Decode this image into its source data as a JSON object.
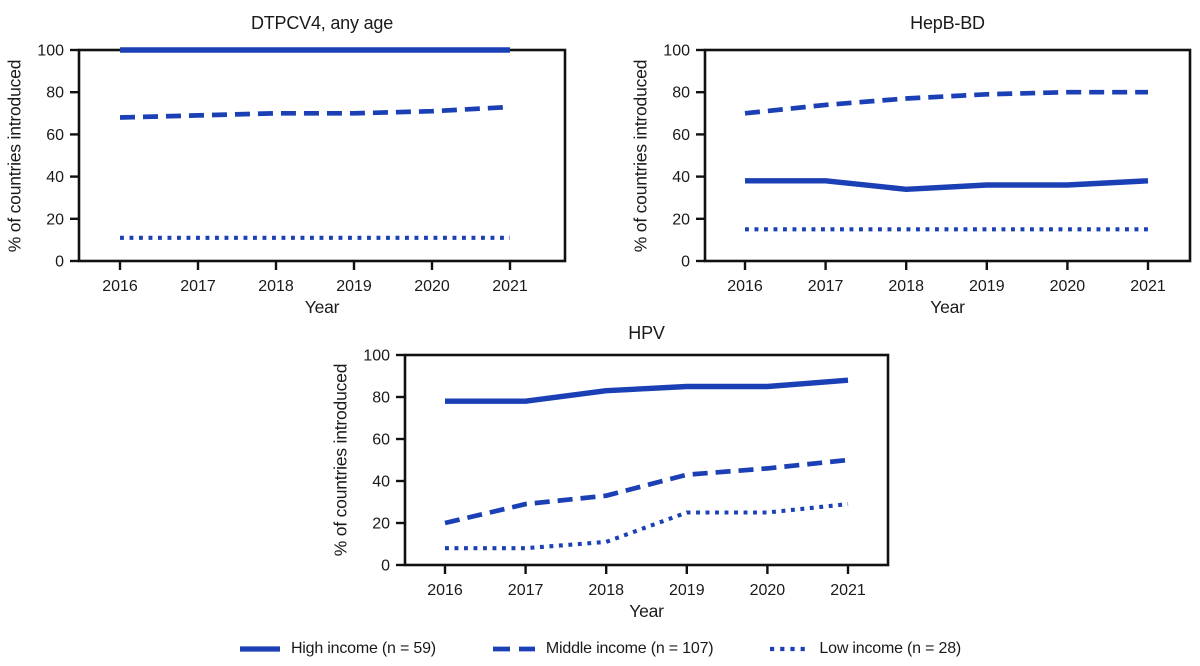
{
  "figure": {
    "line_color": "#1b40b5",
    "axis_color": "#111111",
    "text_color": "#1a1a1a"
  },
  "legend": {
    "items": [
      {
        "label": "High income (n = 59)",
        "style": "solid"
      },
      {
        "label": "Middle income (n = 107)",
        "style": "dashed"
      },
      {
        "label": "Low income (n = 28)",
        "style": "dotted"
      }
    ]
  },
  "chart_data": [
    {
      "type": "line",
      "title": "DTPCV4, any age",
      "xlabel": "Year",
      "ylabel": "% of countries introduced",
      "x": [
        2016,
        2017,
        2018,
        2019,
        2020,
        2021
      ],
      "ylim": [
        0,
        100
      ],
      "yticks": [
        0,
        20,
        40,
        60,
        80,
        100
      ],
      "grid": false,
      "series": [
        {
          "name": "High income (n = 59)",
          "style": "solid",
          "values": [
            100,
            100,
            100,
            100,
            100,
            100
          ]
        },
        {
          "name": "Middle income (n = 107)",
          "style": "dashed",
          "values": [
            68,
            69,
            70,
            70,
            71,
            73
          ]
        },
        {
          "name": "Low income (n = 28)",
          "style": "dotted",
          "values": [
            11,
            11,
            11,
            11,
            11,
            11
          ]
        }
      ]
    },
    {
      "type": "line",
      "title": "HepB-BD",
      "xlabel": "Year",
      "ylabel": "% of countries introduced",
      "x": [
        2016,
        2017,
        2018,
        2019,
        2020,
        2021
      ],
      "ylim": [
        0,
        100
      ],
      "yticks": [
        0,
        20,
        40,
        60,
        80,
        100
      ],
      "grid": false,
      "series": [
        {
          "name": "High income (n = 59)",
          "style": "solid",
          "values": [
            38,
            38,
            34,
            36,
            36,
            38
          ]
        },
        {
          "name": "Middle income (n = 107)",
          "style": "dashed",
          "values": [
            70,
            74,
            77,
            79,
            80,
            80
          ]
        },
        {
          "name": "Low income (n = 28)",
          "style": "dotted",
          "values": [
            15,
            15,
            15,
            15,
            15,
            15
          ]
        }
      ]
    },
    {
      "type": "line",
      "title": "HPV",
      "xlabel": "Year",
      "ylabel": "% of countries introduced",
      "x": [
        2016,
        2017,
        2018,
        2019,
        2020,
        2021
      ],
      "ylim": [
        0,
        100
      ],
      "yticks": [
        0,
        20,
        40,
        60,
        80,
        100
      ],
      "grid": false,
      "series": [
        {
          "name": "High income (n = 59)",
          "style": "solid",
          "values": [
            78,
            78,
            83,
            85,
            85,
            88
          ]
        },
        {
          "name": "Middle income (n = 107)",
          "style": "dashed",
          "values": [
            20,
            29,
            33,
            43,
            46,
            50
          ]
        },
        {
          "name": "Low income (n = 28)",
          "style": "dotted",
          "values": [
            8,
            8,
            11,
            25,
            25,
            29
          ]
        }
      ]
    }
  ]
}
